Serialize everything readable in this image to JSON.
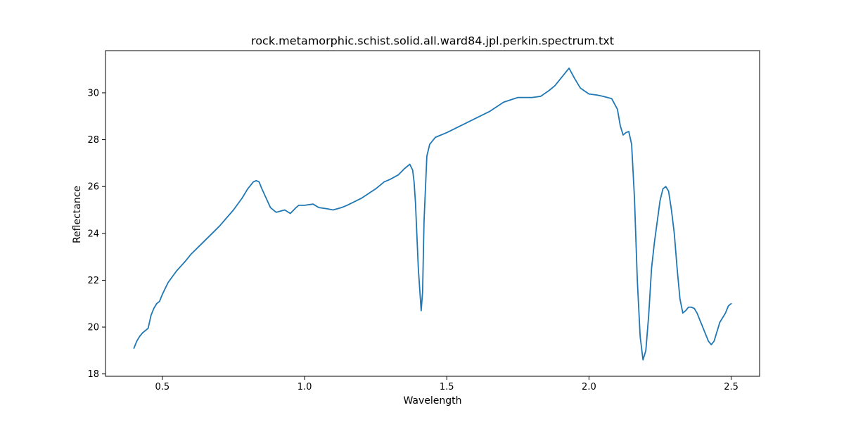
{
  "chart_data": {
    "type": "line",
    "title": "rock.metamorphic.schist.solid.all.ward84.jpl.perkin.spectrum.txt",
    "xlabel": "Wavelength",
    "ylabel": "Reflectance",
    "xlim": [
      0.3,
      2.6
    ],
    "ylim": [
      17.9,
      31.8
    ],
    "xticks": [
      0.5,
      1.0,
      1.5,
      2.0,
      2.5
    ],
    "xtick_labels": [
      "0.5",
      "1.0",
      "1.5",
      "2.0",
      "2.5"
    ],
    "yticks": [
      18,
      20,
      22,
      24,
      26,
      28,
      30
    ],
    "ytick_labels": [
      "18",
      "20",
      "22",
      "24",
      "26",
      "28",
      "30"
    ],
    "grid": false,
    "line_color": "#1f77b4",
    "series": [
      {
        "x": [
          0.4,
          0.41,
          0.42,
          0.43,
          0.44,
          0.45,
          0.46,
          0.47,
          0.48,
          0.49,
          0.5,
          0.52,
          0.55,
          0.58,
          0.6,
          0.65,
          0.7,
          0.75,
          0.78,
          0.8,
          0.82,
          0.83,
          0.84,
          0.85,
          0.88,
          0.9,
          0.93,
          0.95,
          0.97,
          0.98,
          1.0,
          1.03,
          1.05,
          1.08,
          1.1,
          1.13,
          1.15,
          1.2,
          1.25,
          1.28,
          1.3,
          1.33,
          1.35,
          1.36,
          1.37,
          1.38,
          1.385,
          1.39,
          1.4,
          1.41,
          1.415,
          1.42,
          1.43,
          1.44,
          1.46,
          1.5,
          1.55,
          1.6,
          1.65,
          1.7,
          1.75,
          1.8,
          1.83,
          1.86,
          1.88,
          1.9,
          1.92,
          1.93,
          1.95,
          1.97,
          2.0,
          2.03,
          2.05,
          2.08,
          2.1,
          2.11,
          2.12,
          2.13,
          2.14,
          2.15,
          2.16,
          2.17,
          2.18,
          2.19,
          2.2,
          2.21,
          2.22,
          2.23,
          2.24,
          2.25,
          2.26,
          2.27,
          2.28,
          2.29,
          2.3,
          2.31,
          2.32,
          2.33,
          2.34,
          2.35,
          2.36,
          2.37,
          2.38,
          2.4,
          2.42,
          2.43,
          2.44,
          2.45,
          2.46,
          2.48,
          2.49,
          2.5
        ],
        "y": [
          19.1,
          19.4,
          19.6,
          19.75,
          19.85,
          19.95,
          20.5,
          20.8,
          21.0,
          21.1,
          21.4,
          21.9,
          22.4,
          22.8,
          23.1,
          23.7,
          24.3,
          25.0,
          25.5,
          25.9,
          26.2,
          26.25,
          26.2,
          25.9,
          25.1,
          24.9,
          25.0,
          24.85,
          25.1,
          25.2,
          25.2,
          25.25,
          25.1,
          25.05,
          25.0,
          25.1,
          25.2,
          25.5,
          25.9,
          26.2,
          26.3,
          26.5,
          26.75,
          26.85,
          26.95,
          26.7,
          26.2,
          25.3,
          22.5,
          20.7,
          21.5,
          24.5,
          27.3,
          27.8,
          28.1,
          28.3,
          28.6,
          28.9,
          29.2,
          29.6,
          29.8,
          29.8,
          29.85,
          30.1,
          30.3,
          30.6,
          30.9,
          31.05,
          30.6,
          30.2,
          29.95,
          29.9,
          29.85,
          29.75,
          29.3,
          28.6,
          28.2,
          28.3,
          28.35,
          27.8,
          25.5,
          22.0,
          19.6,
          18.6,
          19.0,
          20.5,
          22.5,
          23.6,
          24.5,
          25.4,
          25.9,
          26.0,
          25.8,
          25.0,
          24.0,
          22.5,
          21.2,
          20.6,
          20.7,
          20.85,
          20.85,
          20.8,
          20.6,
          20.0,
          19.4,
          19.25,
          19.4,
          19.8,
          20.2,
          20.6,
          20.9,
          21.0
        ]
      }
    ]
  }
}
